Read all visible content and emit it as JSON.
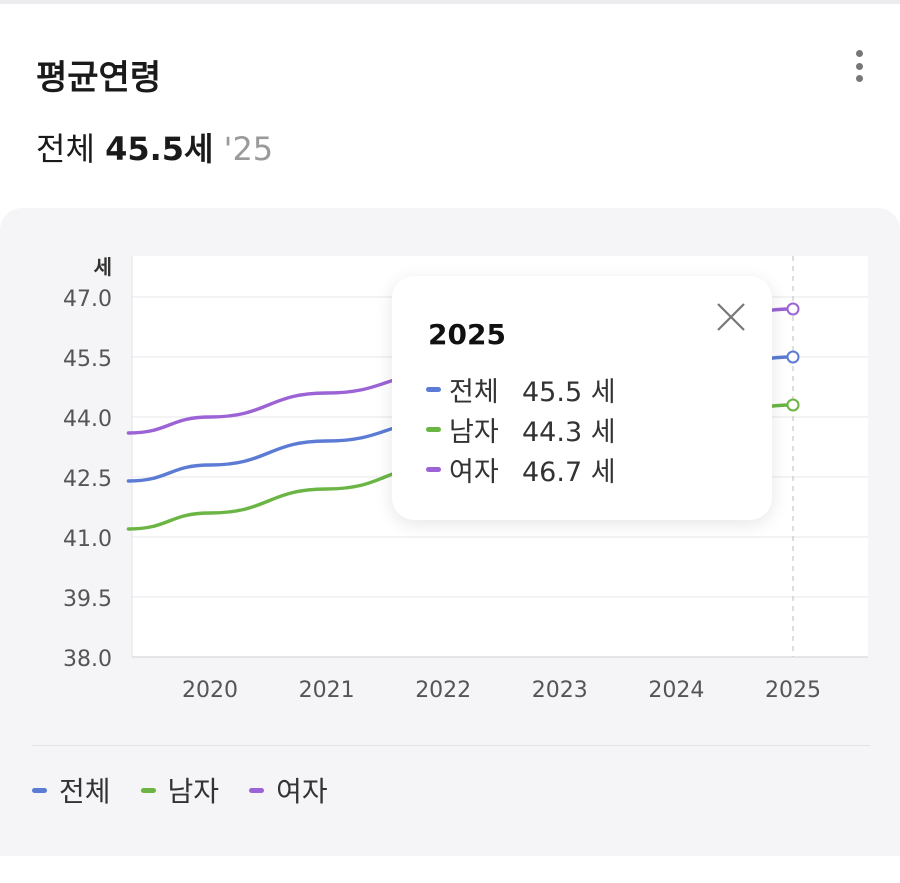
{
  "header": {
    "title": "평균연령",
    "summary_label": "전체",
    "summary_value": "45.5세",
    "summary_year": "'25"
  },
  "menu_icon": "more-vertical-icon",
  "tooltip": {
    "year": "2025",
    "close_icon": "close-icon",
    "rows": [
      {
        "label": "전체",
        "value": "45.5 세",
        "color": "#5b7bd5"
      },
      {
        "label": "남자",
        "value": "44.3 세",
        "color": "#6ab544"
      },
      {
        "label": "여자",
        "value": "46.7 세",
        "color": "#9b63d6"
      }
    ]
  },
  "legend": [
    {
      "label": "전체",
      "color": "#5b7bd5"
    },
    {
      "label": "남자",
      "color": "#6ab544"
    },
    {
      "label": "여자",
      "color": "#9b63d6"
    }
  ],
  "chart_data": {
    "type": "line",
    "ylabel": "세",
    "x": [
      2019.3,
      2020,
      2021,
      2022,
      2023,
      2024,
      2025
    ],
    "xticks": [
      "2020",
      "2021",
      "2022",
      "2023",
      "2024",
      "2025"
    ],
    "ylim": [
      38.0,
      48.0
    ],
    "yticks": [
      "38.0",
      "39.5",
      "41.0",
      "42.5",
      "44.0",
      "45.5",
      "47.0"
    ],
    "grid": true,
    "highlight_x": 2025,
    "series": [
      {
        "name": "전체",
        "color": "#5b7bd5",
        "values": [
          42.4,
          42.8,
          43.4,
          43.9,
          44.5,
          45.0,
          45.5
        ]
      },
      {
        "name": "남자",
        "color": "#6ab544",
        "values": [
          41.2,
          41.6,
          42.2,
          42.8,
          43.3,
          43.8,
          44.3
        ]
      },
      {
        "name": "여자",
        "color": "#9b63d6",
        "values": [
          43.6,
          44.0,
          44.6,
          45.1,
          45.7,
          46.2,
          46.7
        ]
      }
    ]
  }
}
